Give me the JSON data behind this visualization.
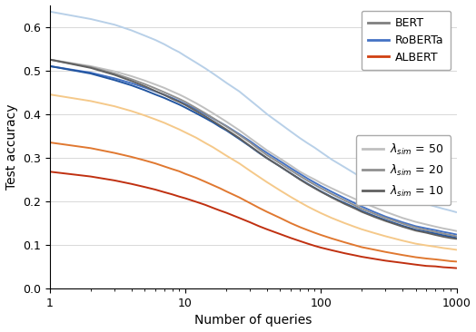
{
  "xlabel": "Number of queries",
  "ylabel": "Test accuracy",
  "xlim": [
    1,
    1000
  ],
  "ylim": [
    0.0,
    0.65
  ],
  "yticks": [
    0.0,
    0.1,
    0.2,
    0.3,
    0.4,
    0.5,
    0.6
  ],
  "figsize": [
    5.24,
    3.66
  ],
  "dpi": 100,
  "series": [
    {
      "key": "RoBERTa_lam50",
      "x": [
        1,
        2,
        3,
        4,
        5,
        6,
        7,
        8,
        9,
        10,
        12,
        14,
        16,
        18,
        20,
        25,
        30,
        35,
        40,
        50,
        60,
        70,
        80,
        90,
        100,
        120,
        150,
        180,
        200,
        250,
        300,
        400,
        500,
        600,
        700,
        800,
        900,
        1000
      ],
      "y": [
        0.635,
        0.618,
        0.605,
        0.592,
        0.58,
        0.57,
        0.56,
        0.55,
        0.542,
        0.533,
        0.518,
        0.505,
        0.493,
        0.482,
        0.472,
        0.452,
        0.432,
        0.415,
        0.4,
        0.378,
        0.36,
        0.345,
        0.333,
        0.323,
        0.313,
        0.296,
        0.278,
        0.263,
        0.255,
        0.24,
        0.228,
        0.212,
        0.2,
        0.194,
        0.188,
        0.183,
        0.179,
        0.175
      ],
      "color": "#b8d0e8",
      "lw": 1.4,
      "alpha": 1.0
    },
    {
      "key": "BERT_lam50",
      "x": [
        1,
        2,
        3,
        4,
        5,
        6,
        7,
        8,
        9,
        10,
        12,
        14,
        16,
        18,
        20,
        25,
        30,
        35,
        40,
        50,
        60,
        70,
        80,
        90,
        100,
        120,
        150,
        180,
        200,
        250,
        300,
        400,
        500,
        600,
        700,
        800,
        900,
        1000
      ],
      "y": [
        0.525,
        0.51,
        0.498,
        0.487,
        0.477,
        0.468,
        0.46,
        0.452,
        0.445,
        0.438,
        0.425,
        0.413,
        0.402,
        0.392,
        0.383,
        0.363,
        0.345,
        0.33,
        0.317,
        0.298,
        0.282,
        0.268,
        0.258,
        0.25,
        0.242,
        0.23,
        0.216,
        0.205,
        0.198,
        0.186,
        0.176,
        0.162,
        0.153,
        0.147,
        0.142,
        0.138,
        0.135,
        0.132
      ],
      "color": "#c0c0c0",
      "lw": 1.4,
      "alpha": 1.0
    },
    {
      "key": "ALBERT_lam50",
      "x": [
        1,
        2,
        3,
        4,
        5,
        6,
        7,
        8,
        9,
        10,
        12,
        14,
        16,
        18,
        20,
        25,
        30,
        35,
        40,
        50,
        60,
        70,
        80,
        90,
        100,
        120,
        150,
        180,
        200,
        250,
        300,
        400,
        500,
        600,
        700,
        800,
        900,
        1000
      ],
      "y": [
        0.445,
        0.43,
        0.418,
        0.407,
        0.397,
        0.388,
        0.38,
        0.372,
        0.365,
        0.358,
        0.346,
        0.334,
        0.324,
        0.314,
        0.305,
        0.287,
        0.27,
        0.256,
        0.244,
        0.225,
        0.21,
        0.198,
        0.188,
        0.18,
        0.173,
        0.162,
        0.15,
        0.141,
        0.136,
        0.127,
        0.12,
        0.11,
        0.103,
        0.099,
        0.096,
        0.093,
        0.091,
        0.089
      ],
      "color": "#f5c98a",
      "lw": 1.4,
      "alpha": 1.0
    },
    {
      "key": "RoBERTa_lam20",
      "x": [
        1,
        2,
        3,
        4,
        5,
        6,
        7,
        8,
        9,
        10,
        12,
        14,
        16,
        18,
        20,
        25,
        30,
        35,
        40,
        50,
        60,
        70,
        80,
        90,
        100,
        120,
        150,
        180,
        200,
        250,
        300,
        400,
        500,
        600,
        700,
        800,
        900,
        1000
      ],
      "y": [
        0.51,
        0.495,
        0.482,
        0.471,
        0.461,
        0.452,
        0.444,
        0.437,
        0.43,
        0.423,
        0.411,
        0.4,
        0.39,
        0.381,
        0.373,
        0.354,
        0.338,
        0.323,
        0.311,
        0.292,
        0.276,
        0.263,
        0.252,
        0.243,
        0.235,
        0.222,
        0.207,
        0.195,
        0.188,
        0.175,
        0.165,
        0.152,
        0.143,
        0.138,
        0.134,
        0.13,
        0.127,
        0.124
      ],
      "color": "#4472c4",
      "lw": 1.4,
      "alpha": 1.0
    },
    {
      "key": "BERT_lam20",
      "x": [
        1,
        2,
        3,
        4,
        5,
        6,
        7,
        8,
        9,
        10,
        12,
        14,
        16,
        18,
        20,
        25,
        30,
        35,
        40,
        50,
        60,
        70,
        80,
        90,
        100,
        120,
        150,
        180,
        200,
        250,
        300,
        400,
        500,
        600,
        700,
        800,
        900,
        1000
      ],
      "y": [
        0.525,
        0.508,
        0.493,
        0.48,
        0.469,
        0.459,
        0.45,
        0.442,
        0.435,
        0.428,
        0.414,
        0.402,
        0.391,
        0.381,
        0.372,
        0.352,
        0.335,
        0.319,
        0.306,
        0.287,
        0.271,
        0.258,
        0.247,
        0.238,
        0.23,
        0.217,
        0.202,
        0.19,
        0.183,
        0.171,
        0.162,
        0.149,
        0.14,
        0.134,
        0.13,
        0.126,
        0.123,
        0.12
      ],
      "color": "#909090",
      "lw": 1.4,
      "alpha": 1.0
    },
    {
      "key": "ALBERT_lam20",
      "x": [
        1,
        2,
        3,
        4,
        5,
        6,
        7,
        8,
        9,
        10,
        12,
        14,
        16,
        18,
        20,
        25,
        30,
        35,
        40,
        50,
        60,
        70,
        80,
        90,
        100,
        120,
        150,
        180,
        200,
        250,
        300,
        400,
        500,
        600,
        700,
        800,
        900,
        1000
      ],
      "y": [
        0.335,
        0.322,
        0.311,
        0.302,
        0.294,
        0.287,
        0.28,
        0.274,
        0.269,
        0.263,
        0.254,
        0.245,
        0.237,
        0.23,
        0.223,
        0.209,
        0.196,
        0.185,
        0.176,
        0.162,
        0.15,
        0.141,
        0.134,
        0.128,
        0.123,
        0.115,
        0.106,
        0.099,
        0.095,
        0.089,
        0.084,
        0.077,
        0.072,
        0.069,
        0.067,
        0.065,
        0.063,
        0.062
      ],
      "color": "#e07830",
      "lw": 1.4,
      "alpha": 1.0
    },
    {
      "key": "RoBERTa_lam10",
      "x": [
        1,
        2,
        3,
        4,
        5,
        6,
        7,
        8,
        9,
        10,
        12,
        14,
        16,
        18,
        20,
        25,
        30,
        35,
        40,
        50,
        60,
        70,
        80,
        90,
        100,
        120,
        150,
        180,
        200,
        250,
        300,
        400,
        500,
        600,
        700,
        800,
        900,
        1000
      ],
      "y": [
        0.51,
        0.493,
        0.478,
        0.466,
        0.455,
        0.445,
        0.437,
        0.429,
        0.422,
        0.415,
        0.402,
        0.391,
        0.381,
        0.371,
        0.363,
        0.343,
        0.326,
        0.311,
        0.299,
        0.28,
        0.264,
        0.251,
        0.24,
        0.231,
        0.223,
        0.21,
        0.196,
        0.185,
        0.178,
        0.166,
        0.157,
        0.144,
        0.135,
        0.13,
        0.126,
        0.122,
        0.119,
        0.116
      ],
      "color": "#2255a0",
      "lw": 1.4,
      "alpha": 1.0
    },
    {
      "key": "BERT_lam10",
      "x": [
        1,
        2,
        3,
        4,
        5,
        6,
        7,
        8,
        9,
        10,
        12,
        14,
        16,
        18,
        20,
        25,
        30,
        35,
        40,
        50,
        60,
        70,
        80,
        90,
        100,
        120,
        150,
        180,
        200,
        250,
        300,
        400,
        500,
        600,
        700,
        800,
        900,
        1000
      ],
      "y": [
        0.525,
        0.506,
        0.49,
        0.476,
        0.464,
        0.453,
        0.444,
        0.435,
        0.428,
        0.421,
        0.407,
        0.395,
        0.384,
        0.374,
        0.365,
        0.345,
        0.327,
        0.312,
        0.299,
        0.28,
        0.264,
        0.25,
        0.239,
        0.23,
        0.222,
        0.209,
        0.194,
        0.183,
        0.176,
        0.164,
        0.155,
        0.142,
        0.133,
        0.128,
        0.123,
        0.119,
        0.116,
        0.114
      ],
      "color": "#606060",
      "lw": 1.4,
      "alpha": 1.0
    },
    {
      "key": "ALBERT_lam10",
      "x": [
        1,
        2,
        3,
        4,
        5,
        6,
        7,
        8,
        9,
        10,
        12,
        14,
        16,
        18,
        20,
        25,
        30,
        35,
        40,
        50,
        60,
        70,
        80,
        90,
        100,
        120,
        150,
        180,
        200,
        250,
        300,
        400,
        500,
        600,
        700,
        800,
        900,
        1000
      ],
      "y": [
        0.268,
        0.257,
        0.248,
        0.24,
        0.233,
        0.227,
        0.221,
        0.216,
        0.211,
        0.207,
        0.199,
        0.192,
        0.185,
        0.179,
        0.174,
        0.162,
        0.152,
        0.143,
        0.136,
        0.125,
        0.116,
        0.109,
        0.103,
        0.098,
        0.094,
        0.088,
        0.081,
        0.076,
        0.073,
        0.068,
        0.064,
        0.059,
        0.055,
        0.052,
        0.051,
        0.049,
        0.048,
        0.047
      ],
      "color": "#c03010",
      "lw": 1.4,
      "alpha": 1.0
    }
  ],
  "legend1_entries": [
    {
      "label": "BERT",
      "color": "#808080"
    },
    {
      "label": "RoBERTa",
      "color": "#4472c4"
    },
    {
      "label": "ALBERT",
      "color": "#d04010"
    }
  ],
  "legend2_entries": [
    {
      "label": "$\\lambda_{sim}$ = 50",
      "color": "#c0c0c0"
    },
    {
      "label": "$\\lambda_{sim}$ = 20",
      "color": "#909090"
    },
    {
      "label": "$\\lambda_{sim}$ = 10",
      "color": "#606060"
    }
  ]
}
